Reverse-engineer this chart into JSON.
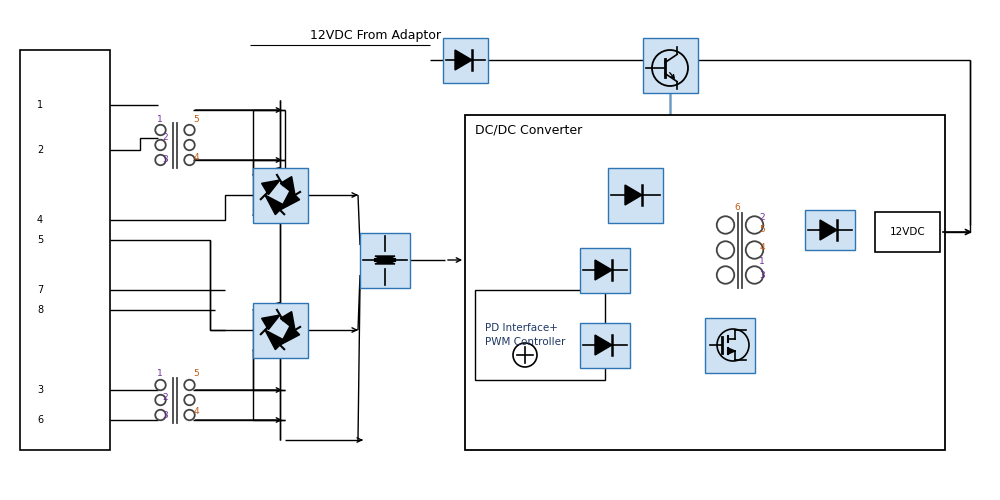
{
  "bg_color": "#ffffff",
  "box_fill": "#cfe2f3",
  "box_edge": "#2e75b6",
  "line_color": "#000000",
  "orange_color": "#c55a11",
  "purple_color": "#7030a0",
  "text_color_dark": "#1f3864",
  "title": "12VDC From Adaptor",
  "dc_dc_label": "DC/DC Converter",
  "pd_label": "PD Interface+\nPWM Controller",
  "out_label": "12VDC",
  "figsize": [
    10.0,
    5.0
  ],
  "dpi": 100,
  "xlim": [
    0,
    100
  ],
  "ylim": [
    0,
    50
  ]
}
